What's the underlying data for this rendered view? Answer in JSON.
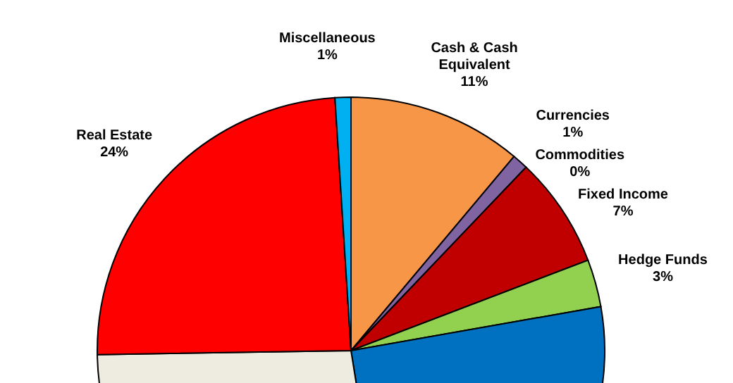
{
  "chart_data": {
    "type": "pie",
    "categories": [
      "Cash & Cash Equivalent",
      "Currencies",
      "Commodities",
      "Fixed Income",
      "Hedge Funds",
      null,
      null,
      "Real Estate",
      "Miscellaneous"
    ],
    "values": [
      11,
      1,
      0,
      7,
      3,
      25,
      27,
      24,
      1
    ],
    "colors": [
      "#f79646",
      "#8064a2",
      "#4bacc6",
      "#c00000",
      "#92d050",
      "#0070c0",
      "#eeece1",
      "#ff0000",
      "#00b0f0"
    ],
    "value_labels": [
      "11%",
      "1%",
      "0%",
      "7%",
      "3%",
      null,
      null,
      "24%",
      "1%"
    ]
  }
}
